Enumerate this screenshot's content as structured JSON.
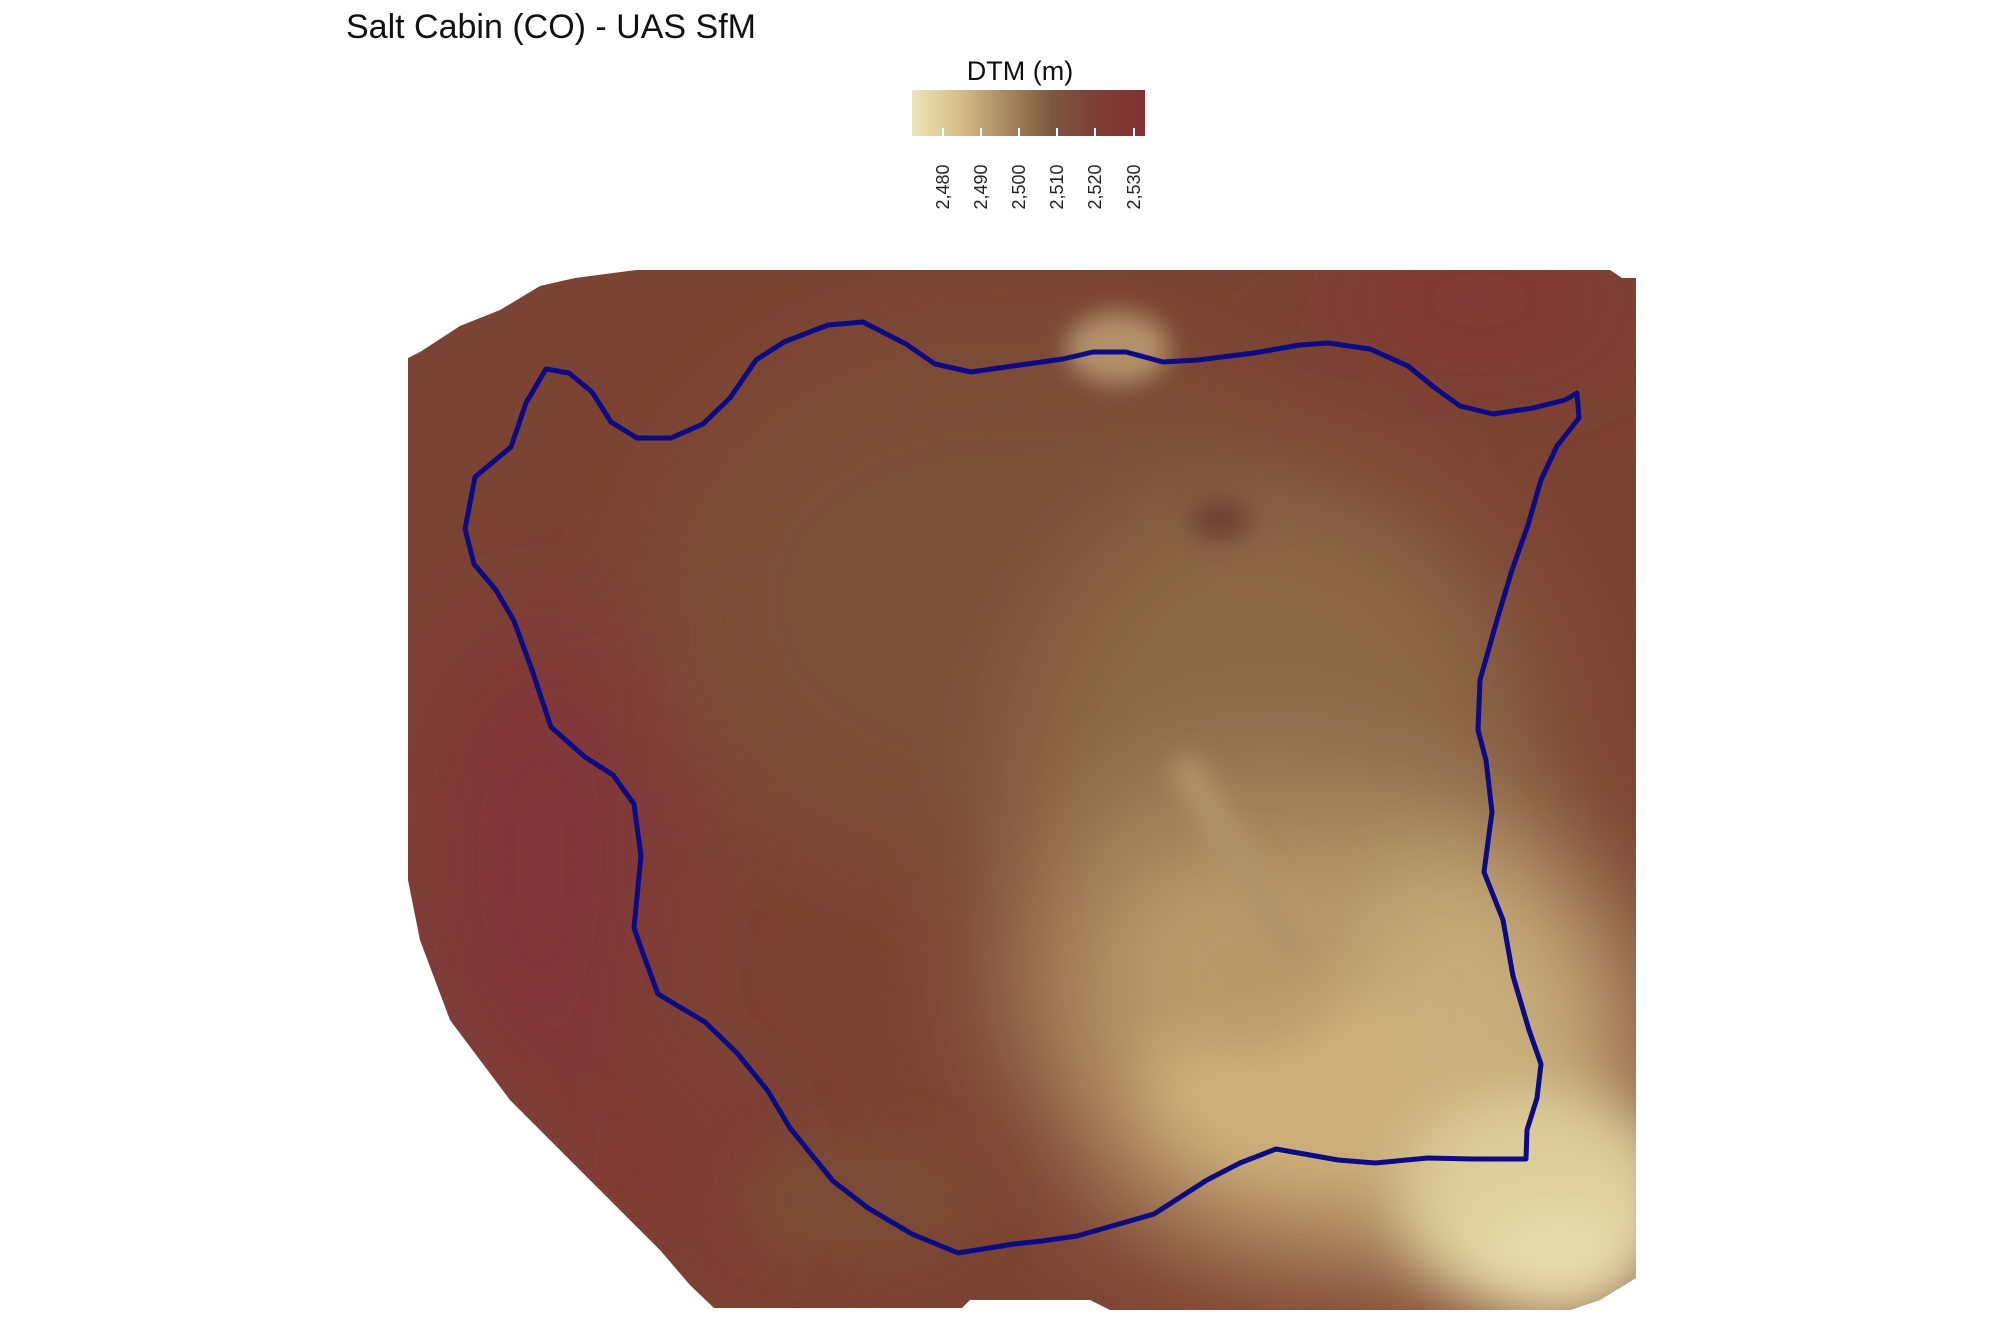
{
  "title": "Salt Cabin (CO) - UAS SfM",
  "legend": {
    "title": "DTM (m)",
    "min": 2472,
    "max": 2533,
    "ticks": [
      {
        "value": 2480,
        "label": "2,480"
      },
      {
        "value": 2490,
        "label": "2,490"
      },
      {
        "value": 2500,
        "label": "2,500"
      },
      {
        "value": 2510,
        "label": "2,510"
      },
      {
        "value": 2520,
        "label": "2,520"
      },
      {
        "value": 2530,
        "label": "2,530"
      }
    ],
    "colors": [
      "#ece5b6",
      "#d8bf88",
      "#a98a63",
      "#7b573f",
      "#7d3e35",
      "#842f32"
    ]
  },
  "boundary": {
    "color": "#0b0b84"
  }
}
